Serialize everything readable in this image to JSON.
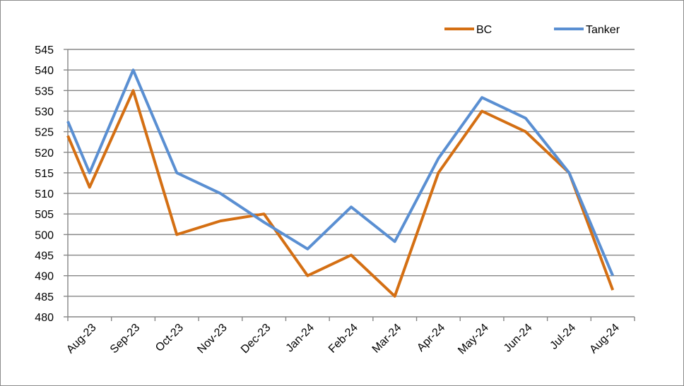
{
  "chart_data": {
    "type": "line",
    "categories": [
      "Aug-23",
      "Sep-23",
      "Oct-23",
      "Nov-23",
      "Dec-23",
      "Jan-24",
      "Feb-24",
      "Mar-24",
      "Apr-24",
      "May-24",
      "Jun-24",
      "Jul-24",
      "Aug-24"
    ],
    "x": [
      0,
      0.5,
      1.5,
      2.5,
      3.5,
      4.5,
      5.5,
      6.5,
      7.5,
      8.5,
      9.5,
      10.5,
      11.5,
      12.5
    ],
    "series": [
      {
        "name": "BC",
        "color": "#d46f13",
        "values": [
          524,
          511.5,
          535,
          500,
          503.3,
          505,
          490,
          495,
          485,
          515,
          530,
          525,
          515,
          486.5
        ]
      },
      {
        "name": "Tanker",
        "color": "#5a8fd2",
        "values": [
          527.5,
          515,
          540,
          515,
          510,
          503,
          496.5,
          506.7,
          498.3,
          518.5,
          533.3,
          528.3,
          515,
          490
        ]
      }
    ],
    "ylim": [
      480,
      545
    ],
    "yticks": [
      "480",
      "485",
      "490",
      "495",
      "500",
      "505",
      "510",
      "515",
      "520",
      "525",
      "530",
      "535",
      "540",
      "545"
    ],
    "grid": true,
    "legend": "top-right",
    "title": "",
    "xlabel": "",
    "ylabel": ""
  }
}
